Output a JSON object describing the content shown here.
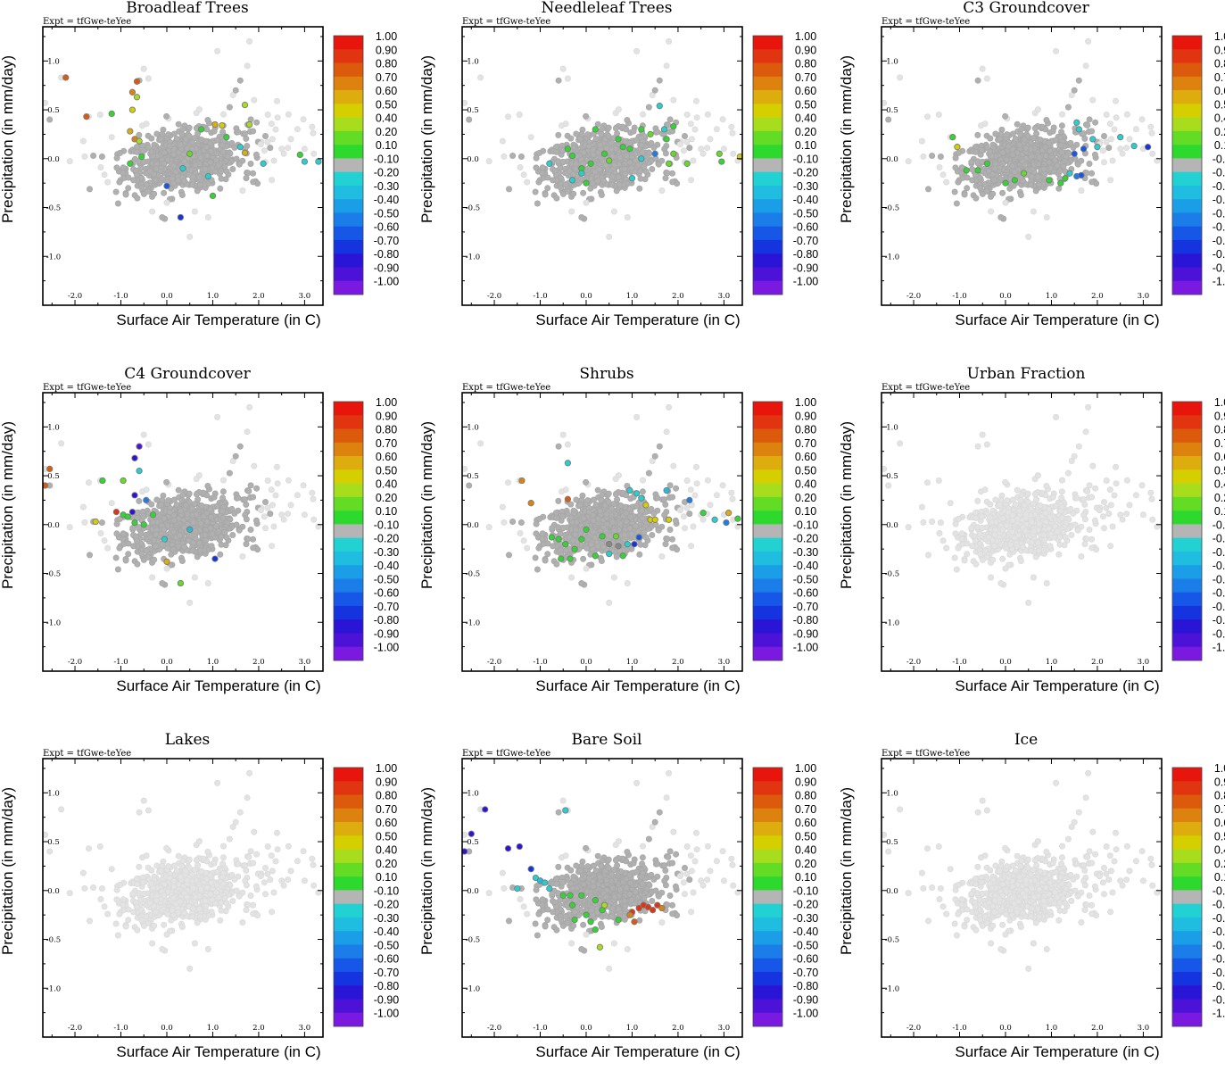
{
  "chart_data": {
    "type": "scatter",
    "figure_description_note": "3x3 grid of scatter plots; points colored by correlation value of each land-cover type",
    "common": {
      "expt_label": "Expt = tfGwe-teYee",
      "xlabel": "Surface Air Temperature (in C)",
      "ylabel": "Precipitation (in mm/day)",
      "xlim": [
        -2.7,
        3.4
      ],
      "ylim": [
        -1.5,
        1.35
      ],
      "xticks": [
        -2.0,
        -1.0,
        0.0,
        1.0,
        2.0,
        3.0
      ],
      "xtick_labels": [
        "-2.0",
        "-1.0",
        "0.0",
        "1.0",
        "2.0",
        "3.0"
      ],
      "yticks": [
        -1.0,
        -0.5,
        0.0,
        0.5,
        1.0
      ],
      "ytick_labels": [
        "-1.0",
        "-0.5",
        "0.0",
        "0.5",
        "1.0"
      ],
      "colorbar_labels": [
        "1.00",
        "0.90",
        "0.80",
        "0.70",
        "0.60",
        "0.50",
        "0.40",
        "0.20",
        "0.10",
        "-0.10",
        "-0.20",
        "-0.30",
        "-0.40",
        "-0.50",
        "-0.60",
        "-0.70",
        "-0.80",
        "-0.90",
        "-1.00"
      ],
      "colorbar_colors": [
        "#e8150d",
        "#e03510",
        "#dc5a0c",
        "#dd820e",
        "#dcad0d",
        "#d6cf00",
        "#a8dd1e",
        "#62dc24",
        "#2ed92e",
        "#b5b5b5",
        "#22d2d2",
        "#1fbde0",
        "#1a9ee8",
        "#1a7de8",
        "#1657e8",
        "#1534e0",
        "#2a14d6",
        "#4c12d8",
        "#7a1ae0"
      ],
      "background_point_color": "#e3e3e3",
      "neutral_point_color": "#b0b0b0"
    },
    "panels": [
      {
        "title": "Broadleaf Trees",
        "neutral": true,
        "colored_points": [
          [
            -2.2,
            0.83,
            "0.80"
          ],
          [
            -1.75,
            0.43,
            "0.80"
          ],
          [
            -1.2,
            0.46,
            "0.10"
          ],
          [
            -0.65,
            0.79,
            "0.80"
          ],
          [
            -0.75,
            0.68,
            "0.70"
          ],
          [
            -0.65,
            0.63,
            "0.40"
          ],
          [
            -0.75,
            0.5,
            "0.50"
          ],
          [
            -0.8,
            0.28,
            "0.60"
          ],
          [
            -0.7,
            0.2,
            "0.70"
          ],
          [
            -0.6,
            0.18,
            "0.40"
          ],
          [
            -0.55,
            0.02,
            "0.10"
          ],
          [
            -0.8,
            -0.05,
            "0.10"
          ],
          [
            0.5,
            0.05,
            "0.20"
          ],
          [
            0.75,
            0.3,
            "0.10"
          ],
          [
            1.05,
            0.35,
            "0.60"
          ],
          [
            1.2,
            0.34,
            "0.50"
          ],
          [
            1.3,
            0.22,
            "0.10"
          ],
          [
            1.6,
            0.12,
            "-0.20"
          ],
          [
            1.7,
            0.55,
            "0.40"
          ],
          [
            1.8,
            0.35,
            "0.40"
          ],
          [
            1.7,
            0.06,
            "0.60"
          ],
          [
            0.3,
            -0.6,
            "-0.70"
          ],
          [
            0.0,
            -0.28,
            "-0.60"
          ],
          [
            0.35,
            -0.1,
            "-0.20"
          ],
          [
            1.0,
            -0.38,
            "0.10"
          ],
          [
            0.9,
            -0.18,
            "-0.20"
          ],
          [
            2.1,
            -0.05,
            "-0.20"
          ],
          [
            2.9,
            0.04,
            "0.10"
          ],
          [
            3.0,
            -0.03,
            "-0.20"
          ],
          [
            3.3,
            -0.03,
            "-0.20"
          ]
        ]
      },
      {
        "title": "Needleleaf Trees",
        "neutral": true,
        "colored_points": [
          [
            -0.8,
            -0.05,
            "-0.20"
          ],
          [
            -0.4,
            0.1,
            "0.10"
          ],
          [
            -0.3,
            0.03,
            "0.10"
          ],
          [
            -0.1,
            -0.1,
            "0.10"
          ],
          [
            0.1,
            -0.05,
            "0.10"
          ],
          [
            0.2,
            0.3,
            "0.10"
          ],
          [
            0.4,
            0.05,
            "0.10"
          ],
          [
            0.5,
            -0.02,
            "0.20"
          ],
          [
            0.7,
            0.2,
            "0.10"
          ],
          [
            0.8,
            0.12,
            "0.10"
          ],
          [
            0.95,
            0.1,
            "0.10"
          ],
          [
            1.2,
            0.3,
            "0.10"
          ],
          [
            1.4,
            0.25,
            "0.20"
          ],
          [
            1.6,
            0.54,
            "-0.20"
          ],
          [
            1.7,
            0.3,
            "-0.20"
          ],
          [
            1.75,
            0.2,
            "0.10"
          ],
          [
            1.9,
            0.33,
            "0.10"
          ],
          [
            1.9,
            0.05,
            "0.20"
          ],
          [
            1.5,
            0.05,
            "-0.50"
          ],
          [
            1.2,
            0.0,
            "-0.20"
          ],
          [
            -0.3,
            -0.22,
            "-0.20"
          ],
          [
            -0.1,
            -0.15,
            "-0.20"
          ],
          [
            0.0,
            -0.25,
            "0.10"
          ],
          [
            1.0,
            -0.2,
            "-0.20"
          ],
          [
            1.8,
            -0.05,
            "0.20"
          ],
          [
            2.2,
            -0.05,
            "0.20"
          ],
          [
            2.9,
            0.05,
            "0.20"
          ],
          [
            2.95,
            -0.03,
            "0.10"
          ],
          [
            3.35,
            0.02,
            "0.50"
          ]
        ]
      },
      {
        "title": "C3 Groundcover",
        "neutral": true,
        "colored_points": [
          [
            -1.15,
            0.22,
            "0.10"
          ],
          [
            -1.05,
            0.12,
            "0.50"
          ],
          [
            -0.6,
            -0.12,
            "0.10"
          ],
          [
            -0.85,
            -0.12,
            "0.10"
          ],
          [
            0.0,
            -0.25,
            "0.10"
          ],
          [
            0.2,
            -0.22,
            "0.10"
          ],
          [
            -0.4,
            -0.05,
            "0.10"
          ],
          [
            0.4,
            -0.15,
            "0.20"
          ],
          [
            0.95,
            -0.22,
            "0.10"
          ],
          [
            1.2,
            -0.25,
            "0.10"
          ],
          [
            1.3,
            -0.2,
            "0.10"
          ],
          [
            1.4,
            -0.15,
            "-0.20"
          ],
          [
            1.55,
            -0.18,
            "-0.50"
          ],
          [
            1.65,
            -0.17,
            "-0.60"
          ],
          [
            1.55,
            0.37,
            "-0.20"
          ],
          [
            1.6,
            0.3,
            "-0.20"
          ],
          [
            1.7,
            0.1,
            "-0.60"
          ],
          [
            1.9,
            0.2,
            "-0.20"
          ],
          [
            2.0,
            0.12,
            "-0.20"
          ],
          [
            2.5,
            0.22,
            "-0.20"
          ],
          [
            2.8,
            0.13,
            "-0.20"
          ],
          [
            3.1,
            0.12,
            "-0.70"
          ],
          [
            1.5,
            0.05,
            "-0.60"
          ]
        ]
      },
      {
        "title": "C4 Groundcover",
        "neutral": true,
        "colored_points": [
          [
            -2.65,
            0.4,
            "0.80"
          ],
          [
            -2.55,
            0.57,
            "0.80"
          ],
          [
            -1.55,
            0.03,
            "0.50"
          ],
          [
            -1.4,
            0.45,
            "0.10"
          ],
          [
            -1.1,
            0.13,
            "0.90"
          ],
          [
            -0.95,
            0.1,
            "0.10"
          ],
          [
            -0.85,
            0.08,
            "0.10"
          ],
          [
            -0.75,
            0.13,
            "-0.80"
          ],
          [
            -0.6,
            0.8,
            "-0.90"
          ],
          [
            -0.7,
            0.68,
            "-0.80"
          ],
          [
            -0.6,
            0.55,
            "-0.20"
          ],
          [
            -0.7,
            0.3,
            "-0.80"
          ],
          [
            -0.45,
            0.25,
            "-0.50"
          ],
          [
            -0.3,
            0.1,
            "0.10"
          ],
          [
            -0.5,
            0.0,
            "0.10"
          ],
          [
            -0.7,
            0.02,
            "0.10"
          ],
          [
            -0.05,
            -0.15,
            "-0.20"
          ],
          [
            0.0,
            -0.38,
            "0.60"
          ],
          [
            0.3,
            -0.6,
            "0.20"
          ],
          [
            1.05,
            -0.35,
            "-0.70"
          ],
          [
            0.5,
            -0.05,
            "-0.30"
          ],
          [
            -0.95,
            0.45,
            "0.20"
          ]
        ]
      },
      {
        "title": "Shrubs",
        "neutral": true,
        "colored_points": [
          [
            -1.4,
            0.45,
            "0.70"
          ],
          [
            -1.2,
            0.22,
            "0.70"
          ],
          [
            -0.4,
            0.26,
            "0.80"
          ],
          [
            -0.4,
            0.63,
            "-0.20"
          ],
          [
            -0.75,
            -0.13,
            "0.10"
          ],
          [
            -0.6,
            -0.15,
            "0.10"
          ],
          [
            -0.45,
            -0.2,
            "0.10"
          ],
          [
            -0.55,
            -0.35,
            "0.10"
          ],
          [
            -0.35,
            -0.35,
            "0.10"
          ],
          [
            -0.25,
            -0.25,
            "0.10"
          ],
          [
            -0.1,
            -0.15,
            "0.10"
          ],
          [
            0.0,
            -0.05,
            "0.10"
          ],
          [
            0.2,
            -0.32,
            "0.10"
          ],
          [
            0.35,
            -0.12,
            "0.10"
          ],
          [
            0.5,
            -0.2,
            "0.30"
          ],
          [
            0.65,
            -0.12,
            "0.20"
          ],
          [
            0.7,
            -0.22,
            "0.30"
          ],
          [
            0.8,
            -0.32,
            "0.10"
          ],
          [
            0.9,
            -0.2,
            "-0.20"
          ],
          [
            1.05,
            -0.2,
            "-0.70"
          ],
          [
            1.15,
            -0.13,
            "-0.60"
          ],
          [
            0.95,
            0.35,
            "-0.20"
          ],
          [
            1.1,
            0.32,
            "-0.20"
          ],
          [
            1.2,
            0.27,
            "-0.20"
          ],
          [
            1.3,
            0.2,
            "0.50"
          ],
          [
            1.4,
            0.05,
            "0.50"
          ],
          [
            1.5,
            0.05,
            "0.50"
          ],
          [
            1.75,
            0.35,
            "-0.30"
          ],
          [
            1.8,
            0.05,
            "0.50"
          ],
          [
            2.25,
            0.25,
            "-0.50"
          ],
          [
            2.55,
            0.12,
            "0.10"
          ],
          [
            2.8,
            0.05,
            "-0.20"
          ],
          [
            3.05,
            0.02,
            "-0.50"
          ],
          [
            3.1,
            0.12,
            "0.60"
          ],
          [
            3.3,
            0.06,
            "0.10"
          ],
          [
            0.5,
            -0.3,
            "-0.20"
          ]
        ]
      },
      {
        "title": "Urban Fraction",
        "neutral": false,
        "colored_points": []
      },
      {
        "title": "Lakes",
        "neutral": false,
        "colored_points": []
      },
      {
        "title": "Bare Soil",
        "neutral": true,
        "colored_points": [
          [
            -2.65,
            0.4,
            "-0.80"
          ],
          [
            -2.5,
            0.58,
            "-0.80"
          ],
          [
            -2.2,
            0.83,
            "-0.80"
          ],
          [
            -1.7,
            0.43,
            "-0.80"
          ],
          [
            -1.45,
            0.45,
            "-0.80"
          ],
          [
            -1.2,
            0.22,
            "-0.70"
          ],
          [
            -1.1,
            0.13,
            "-0.20"
          ],
          [
            -1.5,
            0.02,
            "-0.20"
          ],
          [
            -1.0,
            0.1,
            "-0.30"
          ],
          [
            -0.9,
            0.08,
            "-0.20"
          ],
          [
            -0.8,
            0.02,
            "-0.20"
          ],
          [
            -0.45,
            0.82,
            "-0.20"
          ],
          [
            -0.5,
            -0.05,
            "0.10"
          ],
          [
            -0.35,
            -0.05,
            "0.10"
          ],
          [
            -0.1,
            -0.05,
            "0.10"
          ],
          [
            -0.3,
            -0.15,
            "0.10"
          ],
          [
            -0.25,
            -0.3,
            "0.10"
          ],
          [
            0.0,
            -0.25,
            "0.10"
          ],
          [
            0.2,
            -0.1,
            "0.10"
          ],
          [
            0.35,
            -0.2,
            "0.10"
          ],
          [
            0.4,
            -0.15,
            "0.40"
          ],
          [
            0.7,
            -0.3,
            "0.10"
          ],
          [
            0.3,
            -0.58,
            "0.40"
          ],
          [
            1.0,
            -0.22,
            "0.90"
          ],
          [
            1.05,
            -0.32,
            "0.80"
          ],
          [
            1.15,
            -0.18,
            "0.90"
          ],
          [
            1.25,
            -0.15,
            "0.90"
          ],
          [
            1.35,
            -0.17,
            "0.90"
          ],
          [
            1.45,
            -0.2,
            "0.90"
          ],
          [
            1.55,
            -0.15,
            "0.90"
          ],
          [
            1.65,
            -0.18,
            "0.70"
          ],
          [
            0.95,
            -0.25,
            "0.70"
          ],
          [
            0.2,
            -0.4,
            "0.10"
          ],
          [
            0.1,
            -0.32,
            "0.10"
          ]
        ]
      },
      {
        "title": "Ice",
        "neutral": false,
        "colored_points": []
      }
    ]
  }
}
